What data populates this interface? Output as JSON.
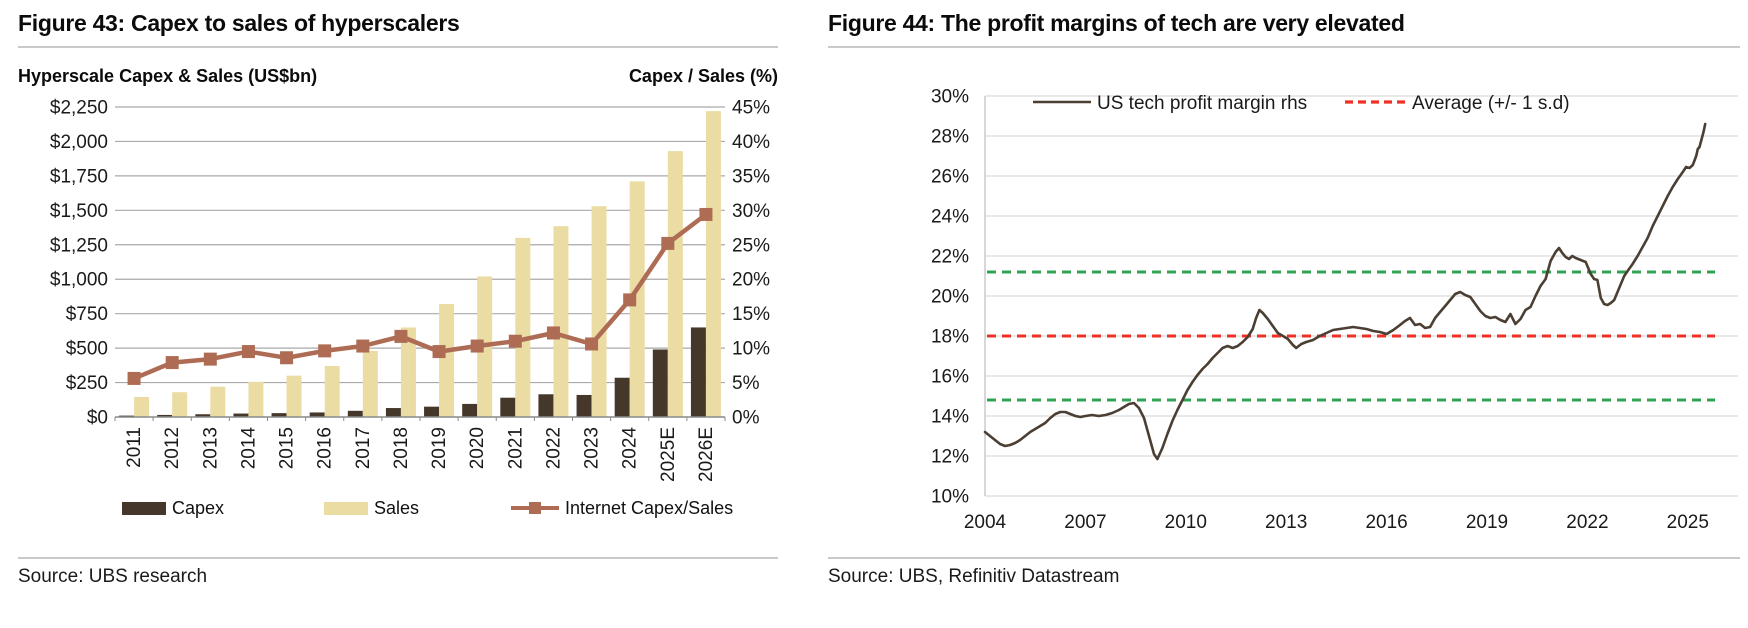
{
  "fig43": {
    "title": "Figure 43: Capex to sales of hyperscalers",
    "left_axis_title": "Hyperscale Capex & Sales (US$bn)",
    "right_axis_title": "Capex / Sales (%)",
    "source": "Source: UBS research"
  },
  "fig44": {
    "title": "Figure 44: The profit margins of tech are very elevated",
    "source": "Source: UBS, Refinitiv Datastream"
  },
  "chart_data": [
    {
      "type": "bar",
      "subtype": "grouped-bars-with-secondary-line",
      "title": "Figure 43: Capex to sales of hyperscalers",
      "categories": [
        "2011",
        "2012",
        "2013",
        "2014",
        "2015",
        "2016",
        "2017",
        "2018",
        "2019",
        "2020",
        "2021",
        "2022",
        "2023",
        "2024",
        "2025E",
        "2026E"
      ],
      "series": [
        {
          "name": "Capex",
          "type": "bar",
          "axis": "left",
          "color": "#453729",
          "values": [
            10,
            15,
            20,
            25,
            28,
            33,
            45,
            65,
            75,
            95,
            140,
            165,
            160,
            285,
            490,
            650
          ]
        },
        {
          "name": "Sales",
          "type": "bar",
          "axis": "left",
          "color": "#EBDCA3",
          "values": [
            145,
            180,
            220,
            255,
            300,
            370,
            480,
            650,
            820,
            1020,
            1300,
            1385,
            1530,
            1710,
            1930,
            2220
          ]
        },
        {
          "name": "Internet Capex/Sales",
          "type": "line",
          "axis": "right",
          "color": "#AE6C55",
          "marker": "square",
          "values": [
            5.6,
            7.9,
            8.4,
            9.5,
            8.6,
            9.6,
            10.3,
            11.7,
            9.5,
            10.3,
            11.0,
            12.2,
            10.6,
            17.0,
            25.2,
            29.4
          ]
        }
      ],
      "left_axis": {
        "title": "Hyperscale Capex & Sales (US$bn)",
        "min": 0,
        "max": 2250,
        "step": 250,
        "tick_labels": [
          "$0",
          "$250",
          "$500",
          "$750",
          "$1,000",
          "$1,250",
          "$1,500",
          "$1,750",
          "$2,000",
          "$2,250"
        ]
      },
      "right_axis": {
        "title": "Capex / Sales (%)",
        "min": 0,
        "max": 45,
        "step": 5,
        "tick_labels": [
          "0%",
          "5%",
          "10%",
          "15%",
          "20%",
          "25%",
          "30%",
          "35%",
          "40%",
          "45%"
        ]
      },
      "grid": true,
      "legend_position": "bottom"
    },
    {
      "type": "line",
      "title": "Figure 44: The profit margins of tech are very elevated",
      "series": [
        {
          "name": "US tech profit margin rhs",
          "color": "#4B3E33",
          "points": [
            [
              2004.0,
              13.2
            ],
            [
              2004.15,
              13.0
            ],
            [
              2004.3,
              12.8
            ],
            [
              2004.45,
              12.6
            ],
            [
              2004.6,
              12.5
            ],
            [
              2004.75,
              12.55
            ],
            [
              2004.9,
              12.65
            ],
            [
              2005.05,
              12.8
            ],
            [
              2005.2,
              13.0
            ],
            [
              2005.35,
              13.2
            ],
            [
              2005.5,
              13.35
            ],
            [
              2005.65,
              13.5
            ],
            [
              2005.8,
              13.65
            ],
            [
              2005.95,
              13.9
            ],
            [
              2006.1,
              14.1
            ],
            [
              2006.25,
              14.2
            ],
            [
              2006.4,
              14.2
            ],
            [
              2006.55,
              14.1
            ],
            [
              2006.7,
              14.0
            ],
            [
              2006.85,
              13.95
            ],
            [
              2007.0,
              14.0
            ],
            [
              2007.2,
              14.05
            ],
            [
              2007.4,
              14.0
            ],
            [
              2007.6,
              14.05
            ],
            [
              2007.8,
              14.15
            ],
            [
              2008.0,
              14.3
            ],
            [
              2008.15,
              14.45
            ],
            [
              2008.3,
              14.6
            ],
            [
              2008.45,
              14.65
            ],
            [
              2008.6,
              14.4
            ],
            [
              2008.75,
              13.9
            ],
            [
              2008.9,
              13.0
            ],
            [
              2009.05,
              12.1
            ],
            [
              2009.15,
              11.85
            ],
            [
              2009.3,
              12.4
            ],
            [
              2009.45,
              13.1
            ],
            [
              2009.6,
              13.75
            ],
            [
              2009.75,
              14.3
            ],
            [
              2009.9,
              14.8
            ],
            [
              2010.05,
              15.3
            ],
            [
              2010.2,
              15.7
            ],
            [
              2010.35,
              16.05
            ],
            [
              2010.5,
              16.35
            ],
            [
              2010.65,
              16.6
            ],
            [
              2010.8,
              16.9
            ],
            [
              2010.95,
              17.15
            ],
            [
              2011.1,
              17.4
            ],
            [
              2011.25,
              17.5
            ],
            [
              2011.4,
              17.4
            ],
            [
              2011.55,
              17.5
            ],
            [
              2011.7,
              17.7
            ],
            [
              2011.85,
              17.95
            ],
            [
              2012.0,
              18.35
            ],
            [
              2012.1,
              18.9
            ],
            [
              2012.2,
              19.3
            ],
            [
              2012.3,
              19.15
            ],
            [
              2012.45,
              18.85
            ],
            [
              2012.6,
              18.5
            ],
            [
              2012.75,
              18.15
            ],
            [
              2012.9,
              18.0
            ],
            [
              2013.05,
              17.85
            ],
            [
              2013.2,
              17.55
            ],
            [
              2013.3,
              17.4
            ],
            [
              2013.45,
              17.6
            ],
            [
              2013.6,
              17.7
            ],
            [
              2013.8,
              17.8
            ],
            [
              2014.0,
              18.0
            ],
            [
              2014.2,
              18.15
            ],
            [
              2014.4,
              18.3
            ],
            [
              2014.6,
              18.35
            ],
            [
              2014.8,
              18.4
            ],
            [
              2015.0,
              18.45
            ],
            [
              2015.2,
              18.4
            ],
            [
              2015.4,
              18.35
            ],
            [
              2015.6,
              18.25
            ],
            [
              2015.8,
              18.2
            ],
            [
              2016.0,
              18.1
            ],
            [
              2016.2,
              18.3
            ],
            [
              2016.4,
              18.55
            ],
            [
              2016.55,
              18.75
            ],
            [
              2016.7,
              18.9
            ],
            [
              2016.85,
              18.55
            ],
            [
              2017.0,
              18.6
            ],
            [
              2017.15,
              18.4
            ],
            [
              2017.3,
              18.45
            ],
            [
              2017.45,
              18.9
            ],
            [
              2017.6,
              19.2
            ],
            [
              2017.75,
              19.5
            ],
            [
              2017.9,
              19.8
            ],
            [
              2018.05,
              20.1
            ],
            [
              2018.2,
              20.2
            ],
            [
              2018.35,
              20.05
            ],
            [
              2018.5,
              19.95
            ],
            [
              2018.65,
              19.6
            ],
            [
              2018.8,
              19.25
            ],
            [
              2018.95,
              19.0
            ],
            [
              2019.1,
              18.9
            ],
            [
              2019.25,
              18.95
            ],
            [
              2019.4,
              18.8
            ],
            [
              2019.55,
              18.7
            ],
            [
              2019.7,
              19.1
            ],
            [
              2019.85,
              18.6
            ],
            [
              2020.0,
              18.85
            ],
            [
              2020.15,
              19.3
            ],
            [
              2020.3,
              19.45
            ],
            [
              2020.45,
              20.0
            ],
            [
              2020.6,
              20.5
            ],
            [
              2020.75,
              20.85
            ],
            [
              2020.9,
              21.75
            ],
            [
              2021.05,
              22.2
            ],
            [
              2021.15,
              22.4
            ],
            [
              2021.25,
              22.15
            ],
            [
              2021.35,
              21.95
            ],
            [
              2021.45,
              21.85
            ],
            [
              2021.55,
              22.0
            ],
            [
              2021.65,
              21.9
            ],
            [
              2021.8,
              21.8
            ],
            [
              2021.95,
              21.7
            ],
            [
              2022.1,
              21.1
            ],
            [
              2022.2,
              20.85
            ],
            [
              2022.3,
              20.8
            ],
            [
              2022.4,
              19.9
            ],
            [
              2022.5,
              19.6
            ],
            [
              2022.6,
              19.55
            ],
            [
              2022.7,
              19.65
            ],
            [
              2022.8,
              19.8
            ],
            [
              2022.95,
              20.4
            ],
            [
              2023.1,
              21.0
            ],
            [
              2023.2,
              21.25
            ],
            [
              2023.35,
              21.6
            ],
            [
              2023.5,
              22.0
            ],
            [
              2023.65,
              22.45
            ],
            [
              2023.8,
              22.9
            ],
            [
              2023.95,
              23.5
            ],
            [
              2024.1,
              24.0
            ],
            [
              2024.25,
              24.5
            ],
            [
              2024.4,
              25.0
            ],
            [
              2024.55,
              25.45
            ],
            [
              2024.7,
              25.85
            ],
            [
              2024.85,
              26.2
            ],
            [
              2024.95,
              26.45
            ],
            [
              2025.05,
              26.4
            ],
            [
              2025.15,
              26.55
            ],
            [
              2025.25,
              27.0
            ],
            [
              2025.3,
              27.35
            ],
            [
              2025.35,
              27.45
            ],
            [
              2025.42,
              27.9
            ],
            [
              2025.47,
              28.2
            ],
            [
              2025.52,
              28.6
            ]
          ]
        }
      ],
      "reference_lines": [
        {
          "name": "Average",
          "value": 18.0,
          "color": "#EE3124",
          "style": "dashed"
        },
        {
          "name": "+1 s.d",
          "value": 21.2,
          "color": "#2FA455",
          "style": "dashed"
        },
        {
          "name": "-1 s.d",
          "value": 14.8,
          "color": "#2FA455",
          "style": "dashed"
        }
      ],
      "legend": [
        {
          "label": "US tech profit margin rhs",
          "color": "#4B3E33",
          "style": "solid"
        },
        {
          "label": "Average (+/- 1 s.d)",
          "color": "#EE3124",
          "style": "dashed"
        }
      ],
      "x_axis": {
        "min": 2004,
        "max": 2026.5,
        "ticks": [
          2004,
          2007,
          2010,
          2013,
          2016,
          2019,
          2022,
          2025
        ]
      },
      "y_axis": {
        "min": 10,
        "max": 30,
        "step": 2,
        "tick_labels": [
          "10%",
          "12%",
          "14%",
          "16%",
          "18%",
          "20%",
          "22%",
          "24%",
          "26%",
          "28%",
          "30%"
        ]
      },
      "grid": true,
      "legend_position": "top-inside"
    }
  ]
}
